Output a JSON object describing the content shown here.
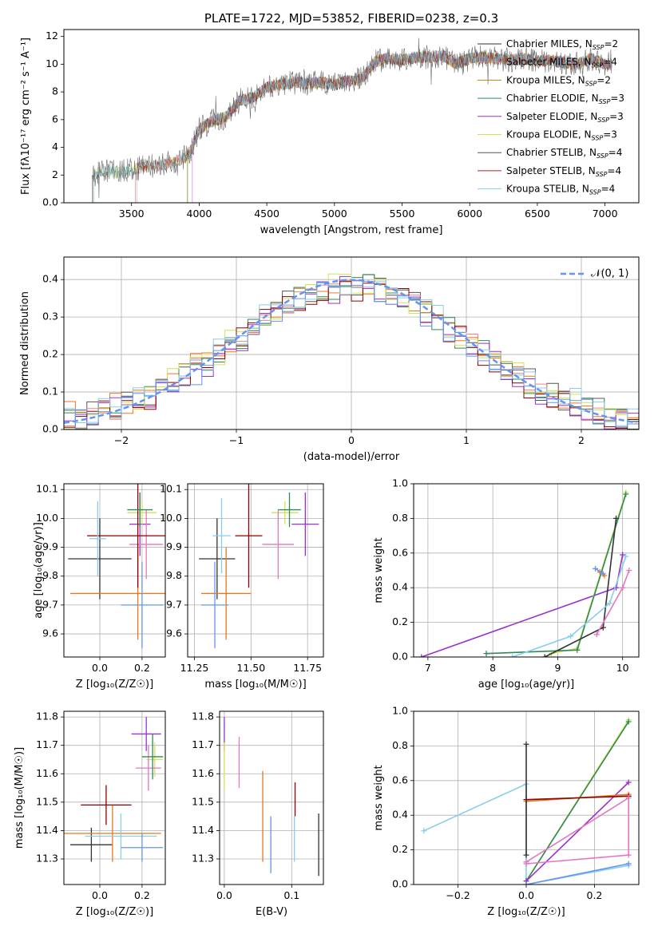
{
  "chart_data": [
    {
      "id": "spectrum",
      "type": "line",
      "title": "PLATE=1722, MJD=53852, FIBERID=0238, z=0.3",
      "xlabel": "wavelength [Angstrom, rest frame]",
      "ylabel": "Flux [fλ10⁻¹⁷ erg cm⁻² s⁻¹ A⁻¹]",
      "xlim": [
        3000,
        7250
      ],
      "ylim": [
        0,
        12.5
      ],
      "xticks": [
        3500,
        4000,
        4500,
        5000,
        5500,
        6000,
        6500,
        7000
      ],
      "yticks": [
        0,
        2,
        4,
        6,
        8,
        10,
        12
      ],
      "grid": false,
      "legend_position": "top-right",
      "data_envelope": {
        "x": [
          3210,
          3300,
          3400,
          3500,
          3600,
          3700,
          3800,
          3900,
          3950,
          4000,
          4100,
          4200,
          4300,
          4400,
          4500,
          4600,
          4700,
          4800,
          4900,
          5000,
          5100,
          5200,
          5300,
          5400,
          5500,
          5600,
          5700,
          5800,
          5900,
          6000,
          6100,
          6200,
          6300,
          6400,
          6500,
          6600,
          6700,
          6800,
          6900,
          7000,
          7050
        ],
        "y": [
          2.0,
          2.3,
          2.2,
          2.4,
          2.6,
          2.7,
          2.9,
          3.3,
          4.0,
          5.3,
          5.9,
          6.2,
          7.4,
          7.6,
          8.3,
          8.5,
          8.7,
          8.6,
          8.7,
          8.5,
          8.8,
          8.9,
          10.2,
          10.4,
          10.3,
          10.5,
          10.5,
          10.6,
          10.0,
          10.4,
          10.5,
          10.4,
          10.3,
          10.4,
          10.2,
          10.3,
          10.1,
          10.0,
          10.4,
          10.0,
          10.0
        ]
      },
      "series": [
        {
          "name": "Chabrier MILES, N_SSP=2",
          "color": "#333333"
        },
        {
          "name": "Salpeter MILES, N_SSP=4",
          "color": "#f08080"
        },
        {
          "name": "Kroupa MILES, N_SSP=2",
          "color": "#b8860b"
        },
        {
          "name": "Chabrier ELODIE, N_SSP=3",
          "color": "#2e8b57"
        },
        {
          "name": "Salpeter ELODIE, N_SSP=3",
          "color": "#9932cc"
        },
        {
          "name": "Kroupa ELODIE, N_SSP=3",
          "color": "#d4e157"
        },
        {
          "name": "Chabrier STELIB, N_SSP=4",
          "color": "#555555"
        },
        {
          "name": "Salpeter STELIB, N_SSP=4",
          "color": "#b22222"
        },
        {
          "name": "Kroupa STELIB, N_SSP=4",
          "color": "#87ceeb"
        }
      ]
    },
    {
      "id": "residuals",
      "type": "line",
      "xlabel": "(data-model)/error",
      "ylabel": "Normed distribution",
      "xlim": [
        -2.5,
        2.5
      ],
      "ylim": [
        0,
        0.46
      ],
      "xticks": [
        -2,
        -1,
        0,
        1,
        2
      ],
      "yticks": [
        0.0,
        0.1,
        0.2,
        0.3,
        0.4
      ],
      "grid": true,
      "legend_position": "top-right",
      "legend_label": "𝒩(0, 1)",
      "normal_curve": {
        "mean": 0,
        "sigma": 1,
        "color": "#6495ed"
      },
      "histograms": [
        {
          "color": "#555555",
          "offset": 0.01
        },
        {
          "color": "#f08080",
          "offset": -0.005
        },
        {
          "color": "#e87722",
          "offset": 0.02
        },
        {
          "color": "#2e8b57",
          "offset": 0.0
        },
        {
          "color": "#9932cc",
          "offset": -0.015
        },
        {
          "color": "#d4e157",
          "offset": 0.008
        },
        {
          "color": "#8b0000",
          "offset": -0.01
        },
        {
          "color": "#87ceeb",
          "offset": 0.015
        },
        {
          "color": "#6495ed",
          "offset": -0.02
        }
      ]
    },
    {
      "id": "age_vs_Z",
      "type": "scatter",
      "xlabel": "Z [log₁₀(Z/Z☉)]",
      "ylabel": "age  [log₁₀(age/yr)]",
      "xlim": [
        -0.17,
        0.31
      ],
      "ylim": [
        9.52,
        10.12
      ],
      "xticks": [
        0.0,
        0.2
      ],
      "yticks": [
        9.6,
        9.7,
        9.8,
        9.9,
        10.0,
        10.1
      ],
      "grid": true,
      "points": [
        {
          "x": 0.0,
          "y": 9.86,
          "xerr": 0.15,
          "yerr": 0.14,
          "color": "#333333"
        },
        {
          "x": 0.19,
          "y": 9.98,
          "xerr": 0.05,
          "yerr": 0.11,
          "color": "#9932cc"
        },
        {
          "x": 0.18,
          "y": 9.74,
          "xerr": 0.32,
          "yerr": 0.16,
          "color": "#e87722"
        },
        {
          "x": 0.2,
          "y": 10.02,
          "xerr": 0.07,
          "yerr": 0.04,
          "color": "#d4e157"
        },
        {
          "x": 0.22,
          "y": 9.91,
          "xerr": 0.08,
          "yerr": 0.12,
          "color": "#e377c2"
        },
        {
          "x": 0.18,
          "y": 9.94,
          "xerr": 0.24,
          "yerr": 0.18,
          "color": "#8b0000"
        },
        {
          "x": -0.01,
          "y": 9.93,
          "xerr": 0.04,
          "yerr": 0.13,
          "color": "#87ceeb"
        },
        {
          "x": 0.2,
          "y": 9.7,
          "xerr": 0.1,
          "yerr": 0.15,
          "color": "#6495ed"
        },
        {
          "x": 0.19,
          "y": 10.03,
          "xerr": 0.06,
          "yerr": 0.06,
          "color": "#2e8b57"
        }
      ]
    },
    {
      "id": "age_vs_mass",
      "type": "scatter",
      "xlabel": "mass [log₁₀(M/M☉)]",
      "ylabel": "",
      "xlim": [
        11.22,
        11.82
      ],
      "ylim": [
        9.52,
        10.12
      ],
      "xticks": [
        11.25,
        11.5,
        11.75
      ],
      "yticks": [
        9.6,
        9.7,
        9.8,
        9.9,
        10.0,
        10.1
      ],
      "grid": true,
      "points": [
        {
          "x": 11.35,
          "y": 9.86,
          "xerr": 0.08,
          "yerr": 0.14,
          "color": "#333333"
        },
        {
          "x": 11.74,
          "y": 9.98,
          "xerr": 0.06,
          "yerr": 0.11,
          "color": "#9932cc"
        },
        {
          "x": 11.39,
          "y": 9.74,
          "xerr": 0.11,
          "yerr": 0.16,
          "color": "#e87722"
        },
        {
          "x": 11.65,
          "y": 10.02,
          "xerr": 0.06,
          "yerr": 0.04,
          "color": "#d4e157"
        },
        {
          "x": 11.62,
          "y": 9.91,
          "xerr": 0.07,
          "yerr": 0.12,
          "color": "#e377c2"
        },
        {
          "x": 11.49,
          "y": 9.94,
          "xerr": 0.06,
          "yerr": 0.18,
          "color": "#8b0000"
        },
        {
          "x": 11.37,
          "y": 9.94,
          "xerr": 0.04,
          "yerr": 0.13,
          "color": "#87ceeb"
        },
        {
          "x": 11.34,
          "y": 9.7,
          "xerr": 0.06,
          "yerr": 0.15,
          "color": "#6495ed"
        },
        {
          "x": 11.67,
          "y": 10.03,
          "xerr": 0.05,
          "yerr": 0.06,
          "color": "#2e8b57"
        }
      ]
    },
    {
      "id": "weight_vs_age",
      "type": "line",
      "xlabel": "age  [log₁₀(age/yr)]",
      "ylabel": "mass weight",
      "xlim": [
        6.78,
        10.25
      ],
      "ylim": [
        0,
        1.0
      ],
      "xticks": [
        7,
        8,
        9,
        10
      ],
      "yticks": [
        0.0,
        0.2,
        0.4,
        0.6,
        0.8,
        1.0
      ],
      "grid": true,
      "series": [
        {
          "color": "#9932cc",
          "x": [
            6.9,
            9.9,
            10.0
          ],
          "y": [
            0.0,
            0.4,
            0.59
          ]
        },
        {
          "color": "#d4e157",
          "x": [
            8.9,
            9.3,
            10.05
          ],
          "y": [
            0.02,
            0.05,
            0.95
          ]
        },
        {
          "color": "#2e8b57",
          "x": [
            7.9,
            9.3,
            10.05
          ],
          "y": [
            0.02,
            0.04,
            0.94
          ]
        },
        {
          "color": "#333333",
          "x": [
            8.8,
            9.7,
            9.9
          ],
          "y": [
            0.0,
            0.17,
            0.8
          ]
        },
        {
          "color": "#e377c2",
          "x": [
            9.6,
            10.0,
            10.1
          ],
          "y": [
            0.13,
            0.4,
            0.5
          ]
        },
        {
          "color": "#87ceeb",
          "x": [
            8.3,
            9.2,
            9.8,
            10.05
          ],
          "y": [
            0.0,
            0.12,
            0.31,
            0.58
          ]
        },
        {
          "color": "#e87722",
          "x": [
            9.65,
            9.72
          ],
          "y": [
            0.49,
            0.47
          ]
        },
        {
          "color": "#6495ed",
          "x": [
            9.58,
            9.7
          ],
          "y": [
            0.51,
            0.48
          ]
        }
      ]
    },
    {
      "id": "mass_vs_Z",
      "type": "scatter",
      "xlabel": "Z [log₁₀(Z/Z☉)]",
      "ylabel": "mass [log₁₀(M/M☉)]",
      "xlim": [
        -0.17,
        0.31
      ],
      "ylim": [
        11.21,
        11.82
      ],
      "xticks": [
        0.0,
        0.2
      ],
      "yticks": [
        11.3,
        11.4,
        11.5,
        11.6,
        11.7,
        11.8
      ],
      "grid": true,
      "points": [
        {
          "x": -0.04,
          "y": 11.35,
          "xerr": 0.1,
          "yerr": 0.06,
          "color": "#333333"
        },
        {
          "x": 0.22,
          "y": 11.74,
          "xerr": 0.07,
          "yerr": 0.06,
          "color": "#9932cc"
        },
        {
          "x": 0.06,
          "y": 11.39,
          "xerr": 0.23,
          "yerr": 0.1,
          "color": "#e87722"
        },
        {
          "x": 0.26,
          "y": 11.65,
          "xerr": 0.04,
          "yerr": 0.06,
          "color": "#d4e157"
        },
        {
          "x": 0.23,
          "y": 11.62,
          "xerr": 0.06,
          "yerr": 0.08,
          "color": "#e377c2"
        },
        {
          "x": 0.03,
          "y": 11.49,
          "xerr": 0.12,
          "yerr": 0.07,
          "color": "#8b0000"
        },
        {
          "x": 0.1,
          "y": 11.38,
          "xerr": 0.17,
          "yerr": 0.08,
          "color": "#87ceeb"
        },
        {
          "x": 0.2,
          "y": 11.34,
          "xerr": 0.1,
          "yerr": 0.05,
          "color": "#6495ed"
        },
        {
          "x": 0.25,
          "y": 11.66,
          "xerr": 0.05,
          "yerr": 0.08,
          "color": "#2e8b57"
        }
      ]
    },
    {
      "id": "mass_vs_EBV",
      "type": "scatter",
      "xlabel": "E(B-V)",
      "ylabel": "",
      "xlim": [
        -0.007,
        0.147
      ],
      "ylim": [
        11.21,
        11.82
      ],
      "xticks": [
        0.0,
        0.1
      ],
      "yticks": [
        11.3,
        11.4,
        11.5,
        11.6,
        11.7,
        11.8
      ],
      "grid": true,
      "points": [
        {
          "x": 0.14,
          "y": 11.35,
          "xerr": 0,
          "yerr": 0.11,
          "color": "#333333"
        },
        {
          "x": 0.0,
          "y": 11.74,
          "xerr": 0,
          "yerr": 0.06,
          "color": "#9932cc"
        },
        {
          "x": 0.057,
          "y": 11.45,
          "xerr": 0,
          "yerr": 0.16,
          "color": "#e87722"
        },
        {
          "x": 0.0,
          "y": 11.63,
          "xerr": 0,
          "yerr": 0.08,
          "color": "#d4e157"
        },
        {
          "x": 0.022,
          "y": 11.64,
          "xerr": 0,
          "yerr": 0.09,
          "color": "#e377c2"
        },
        {
          "x": 0.105,
          "y": 11.51,
          "xerr": 0,
          "yerr": 0.06,
          "color": "#8b0000"
        },
        {
          "x": 0.104,
          "y": 11.37,
          "xerr": 0,
          "yerr": 0.08,
          "color": "#87ceeb"
        },
        {
          "x": 0.069,
          "y": 11.35,
          "xerr": 0,
          "yerr": 0.1,
          "color": "#6495ed"
        }
      ]
    },
    {
      "id": "weight_vs_Z",
      "type": "line",
      "xlabel": "Z [log₁₀(Z/Z☉)]",
      "ylabel": "mass weight",
      "xlim": [
        -0.33,
        0.33
      ],
      "ylim": [
        0,
        1.0
      ],
      "xticks": [
        -0.2,
        0.0,
        0.2
      ],
      "yticks": [
        0.0,
        0.2,
        0.4,
        0.6,
        0.8,
        1.0
      ],
      "grid": true,
      "series": [
        {
          "color": "#87ceeb",
          "x": [
            -0.3,
            0.0,
            0.0,
            0.3
          ],
          "y": [
            0.31,
            0.58,
            0.0,
            0.11
          ]
        },
        {
          "color": "#d4e157",
          "x": [
            0.0,
            0.3
          ],
          "y": [
            0.02,
            0.95
          ]
        },
        {
          "color": "#2e8b57",
          "x": [
            0.0,
            0.3
          ],
          "y": [
            0.02,
            0.94
          ]
        },
        {
          "color": "#9932cc",
          "x": [
            0.0,
            0.3
          ],
          "y": [
            0.02,
            0.59
          ]
        },
        {
          "color": "#e87722",
          "x": [
            0.0,
            0.3
          ],
          "y": [
            0.48,
            0.52
          ]
        },
        {
          "color": "#8b0000",
          "x": [
            0.0,
            0.3
          ],
          "y": [
            0.49,
            0.51
          ]
        },
        {
          "color": "#e377c2",
          "x": [
            0.0,
            0.3,
            0.3,
            0.0
          ],
          "y": [
            0.13,
            0.5,
            0.17,
            0.12
          ]
        },
        {
          "color": "#333333",
          "x": [
            0.0,
            0.0
          ],
          "y": [
            0.81,
            0.17
          ]
        },
        {
          "color": "#6495ed",
          "x": [
            0.0,
            0.3
          ],
          "y": [
            0.0,
            0.12
          ]
        }
      ]
    }
  ]
}
